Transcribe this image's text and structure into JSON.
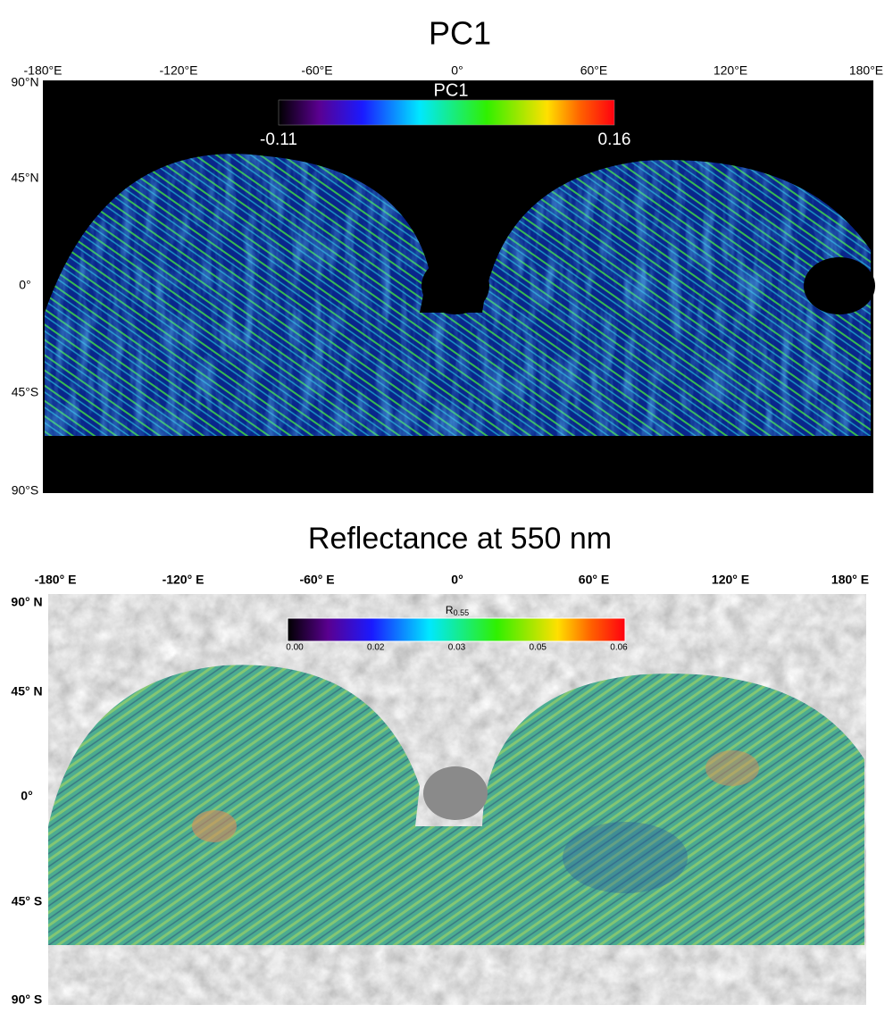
{
  "panels": [
    {
      "title": "PC1",
      "x_labels": [
        "-180°E",
        "-120°E",
        "-60°E",
        "0°",
        "60°E",
        "120°E",
        "180°E"
      ],
      "y_labels": [
        "90°N",
        "45°N",
        "0°",
        "45°S",
        "90°S"
      ],
      "colorbar": {
        "title": "PC1",
        "labels": [
          "-0.11",
          "0.16"
        ]
      }
    },
    {
      "title": "Reflectance at 550 nm",
      "x_labels": [
        "-180° E",
        "-120° E",
        "-60° E",
        "0°",
        "60° E",
        "120° E",
        "180° E"
      ],
      "y_labels": [
        "90° N",
        "45° N",
        "0°",
        "45° S",
        "90° S"
      ],
      "colorbar": {
        "title": {
          "symbol": "R",
          "subscript": "0.55"
        },
        "labels": [
          "0.00",
          "0.02",
          "0.03",
          "0.05",
          "0.06"
        ]
      }
    }
  ]
}
